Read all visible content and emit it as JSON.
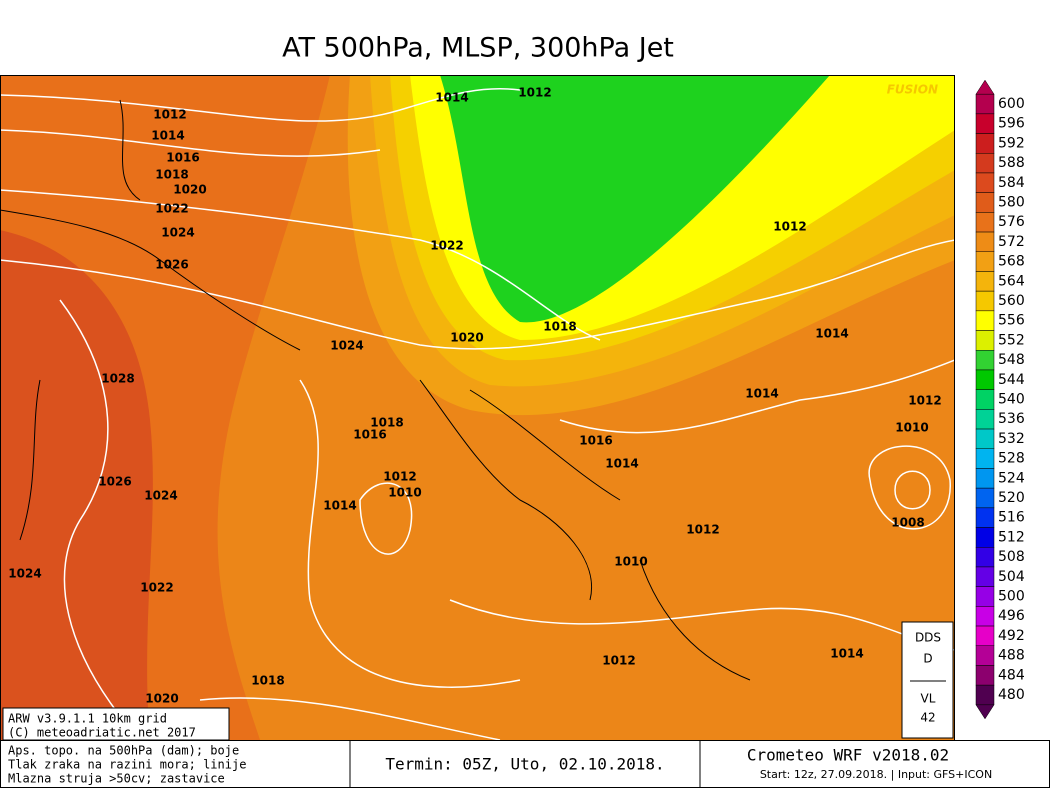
{
  "header": {
    "title": "AT 500hPa, MLSP, 300hPa Jet"
  },
  "map": {
    "watermark": "FUSION",
    "isobar_labels": [
      "1012",
      "1014",
      "1016",
      "1018",
      "1020",
      "1022",
      "1024",
      "1026",
      "1028",
      "1026",
      "1024",
      "1024",
      "1022",
      "1020",
      "1018",
      "1014",
      "1016",
      "1018",
      "1012",
      "1010",
      "1024",
      "1020",
      "1022",
      "1014",
      "1012",
      "1018",
      "1016",
      "1014",
      "1012",
      "1010",
      "1012",
      "1014",
      "1012",
      "1014",
      "1012",
      "1010",
      "1008",
      "1014"
    ],
    "model_info": [
      "ARW v3.9.1.1 10km grid",
      "(C) meteoadriatic.net 2017"
    ],
    "station_box": [
      "DDS",
      "D",
      "VL",
      "42"
    ]
  },
  "colorbar": {
    "levels": [
      600,
      596,
      592,
      588,
      584,
      580,
      576,
      572,
      568,
      564,
      560,
      556,
      552,
      548,
      544,
      540,
      536,
      532,
      528,
      524,
      520,
      516,
      512,
      508,
      504,
      500,
      496,
      492,
      488,
      484,
      480
    ],
    "colors": [
      "#b4004e",
      "#c8002c",
      "#cc1e1e",
      "#d43a1e",
      "#dc4a1e",
      "#e05c1a",
      "#e8721a",
      "#ee8c16",
      "#f2a014",
      "#f4b40c",
      "#f5c800",
      "#ffff00",
      "#dcf000",
      "#32d232",
      "#00c800",
      "#00d264",
      "#00d296",
      "#00c8c8",
      "#00b4f0",
      "#0096f0",
      "#0064f0",
      "#0032f0",
      "#0000e6",
      "#3200e6",
      "#6400e6",
      "#9600e6",
      "#c800e6",
      "#e600c8",
      "#b40096",
      "#8c006e",
      "#500050"
    ]
  },
  "footer": {
    "legend": [
      "Aps. topo. na 500hPa (dam); boje",
      "Tlak zraka na razini mora; linije",
      "Mlazna struja >50cv; zastavice"
    ],
    "run": "Termin: 05Z, Uto, 02.10.2018.",
    "model": "Crometeo WRF v2018.02",
    "start": "Start: 12z, 27.09.2018. | Input: GFS+ICON"
  }
}
